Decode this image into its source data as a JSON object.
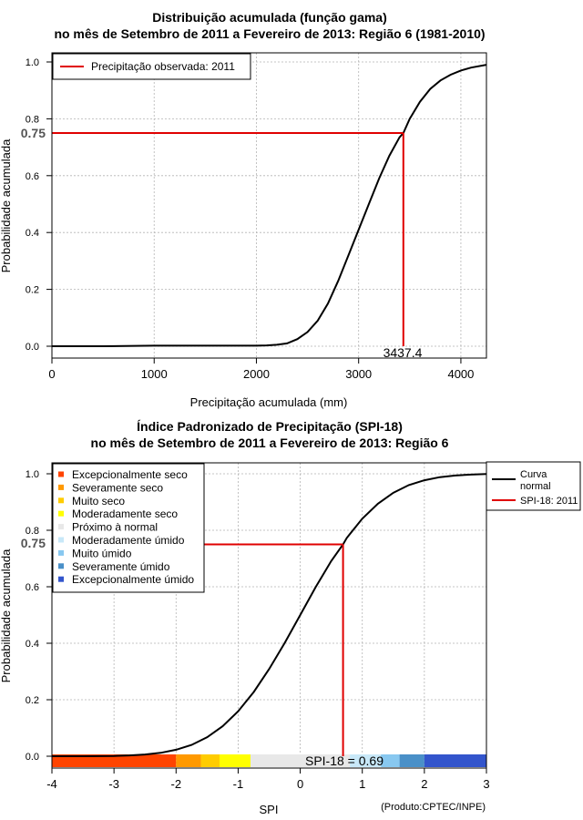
{
  "chart_data": [
    {
      "type": "line",
      "title_line1": "Distribuição acumulada (função gama)",
      "title_line2": "no mês de Setembro de 2011 a Fevereiro de 2013: Região 6 (1981-2010)",
      "xlabel": "Precipitação acumulada (mm)",
      "ylabel": "Probabilidade acumulada",
      "xlim": [
        0,
        4250
      ],
      "ylim": [
        0,
        1
      ],
      "xticks": [
        0,
        1000,
        2000,
        3000,
        4000
      ],
      "yticks": [
        0.0,
        0.2,
        0.4,
        0.6,
        0.8,
        1.0
      ],
      "grid": true,
      "legend": {
        "position": "top-left",
        "entries": [
          {
            "label": "Precipitação observada: 2011",
            "color": "#e00000"
          }
        ]
      },
      "curve": {
        "name": "Gama acumulada",
        "x": [
          0,
          500,
          1000,
          1500,
          2000,
          2100,
          2200,
          2300,
          2400,
          2500,
          2600,
          2700,
          2800,
          2900,
          3000,
          3100,
          3200,
          3300,
          3400,
          3437.4,
          3500,
          3600,
          3700,
          3800,
          3900,
          4000,
          4100,
          4250
        ],
        "y": [
          0.0,
          0.0,
          0.002,
          0.002,
          0.002,
          0.003,
          0.005,
          0.01,
          0.025,
          0.05,
          0.09,
          0.15,
          0.23,
          0.32,
          0.41,
          0.5,
          0.59,
          0.67,
          0.735,
          0.75,
          0.8,
          0.86,
          0.905,
          0.935,
          0.955,
          0.97,
          0.98,
          0.99
        ]
      },
      "observed": {
        "x": 3437.4,
        "y": 0.75,
        "x_label": "3437.4",
        "y_label": "0.75"
      }
    },
    {
      "type": "line",
      "title_line1": "Índice Padronizado de Precipitação (SPI-18)",
      "title_line2": "no mês de Setembro de 2011 a Fevereiro de 2013: Região 6",
      "xlabel": "SPI",
      "ylabel": "Probabilidade acumulada",
      "xlim": [
        -4,
        3
      ],
      "ylim": [
        0,
        1
      ],
      "xticks": [
        -4,
        -3,
        -2,
        -1,
        0,
        1,
        2,
        3
      ],
      "yticks": [
        0.0,
        0.2,
        0.4,
        0.6,
        0.8,
        1.0
      ],
      "grid": true,
      "category_legend": {
        "position": "top-left",
        "entries": [
          {
            "label": "Excepcionalmente seco",
            "color": "#ff4400"
          },
          {
            "label": "Severamente seco",
            "color": "#ff9900"
          },
          {
            "label": "Muito seco",
            "color": "#ffcc00"
          },
          {
            "label": "Moderadamente seco",
            "color": "#ffff00"
          },
          {
            "label": "Próximo à normal",
            "color": "#e8e8e8"
          },
          {
            "label": "Moderadamente úmido",
            "color": "#c8e8f8"
          },
          {
            "label": "Muito úmido",
            "color": "#88c8f0"
          },
          {
            "label": "Severamente úmido",
            "color": "#4a90c8"
          },
          {
            "label": "Excepcionalmente úmido",
            "color": "#3355cc"
          }
        ]
      },
      "series_legend": {
        "position": "top-right",
        "entries": [
          {
            "label_line1": "Curva",
            "label_line2": "normal",
            "color": "#000000"
          },
          {
            "label_line1": "SPI-18: 2011",
            "label_line2": "",
            "color": "#e00000"
          }
        ]
      },
      "curve": {
        "name": "Curva normal",
        "x": [
          -4,
          -3.5,
          -3,
          -2.75,
          -2.5,
          -2.25,
          -2,
          -1.75,
          -1.5,
          -1.25,
          -1,
          -0.75,
          -0.5,
          -0.25,
          0,
          0.25,
          0.5,
          0.69,
          0.75,
          1,
          1.25,
          1.5,
          1.75,
          2,
          2.25,
          2.5,
          2.75,
          3
        ],
        "y": [
          0.0,
          0.0,
          0.001,
          0.003,
          0.006,
          0.012,
          0.023,
          0.04,
          0.067,
          0.106,
          0.159,
          0.227,
          0.309,
          0.401,
          0.5,
          0.599,
          0.691,
          0.75,
          0.773,
          0.841,
          0.894,
          0.933,
          0.96,
          0.977,
          0.988,
          0.994,
          0.997,
          0.999
        ]
      },
      "observed": {
        "x": 0.69,
        "y": 0.75,
        "x_label": "SPI-18 = 0.69",
        "y_label": "0.75"
      },
      "color_bar": [
        {
          "from": -4,
          "to": -2,
          "color": "#ff4400"
        },
        {
          "from": -2,
          "to": -1.6,
          "color": "#ff9900"
        },
        {
          "from": -1.6,
          "to": -1.3,
          "color": "#ffcc00"
        },
        {
          "from": -1.3,
          "to": -0.8,
          "color": "#ffff00"
        },
        {
          "from": -0.8,
          "to": 0.8,
          "color": "#e8e8e8"
        },
        {
          "from": 0.8,
          "to": 1.3,
          "color": "#c8e8f8"
        },
        {
          "from": 1.3,
          "to": 1.6,
          "color": "#88c8f0"
        },
        {
          "from": 1.6,
          "to": 2,
          "color": "#4a90c8"
        },
        {
          "from": 2,
          "to": 3,
          "color": "#3355cc"
        }
      ],
      "credit": "(Produto:CPTEC/INPE)"
    }
  ]
}
